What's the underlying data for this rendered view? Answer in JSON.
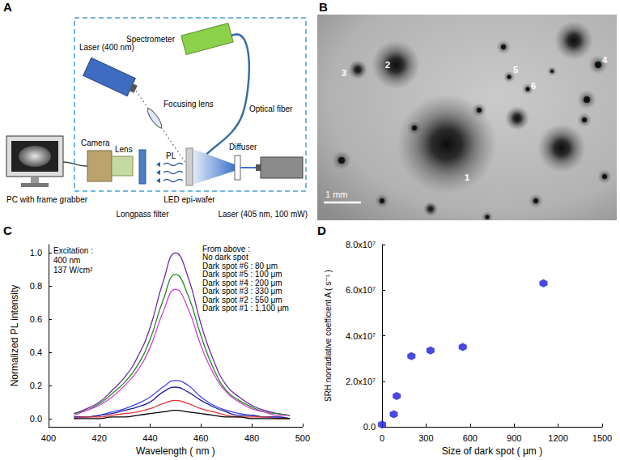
{
  "panels": {
    "A": {
      "panel_label": "A",
      "labels": {
        "spectrometer": "Spectrometer",
        "laser_probe": "Laser (400 nm)",
        "focusing_lens": "Focusing lens",
        "optical_fiber": "Optical fiber",
        "camera": "Camera",
        "lens": "Lens",
        "longpass_filter": "Longpass filter",
        "pl": "PL",
        "wafer": "LED epi-wafer",
        "diffuser": "Diffuser",
        "laser_pump": "Laser (405 nm, 100 mW)",
        "pc": "PC with frame grabber"
      }
    },
    "B": {
      "panel_label": "B",
      "spot_labels": [
        "1",
        "2",
        "3",
        "4",
        "5",
        "6"
      ],
      "scale_bar": "1 mm"
    }
  },
  "chart_data": [
    {
      "panel_label": "C",
      "type": "line",
      "x_label": "Wavelength ( nm )",
      "y_label": "Normalized PL intensity",
      "annotations": {
        "excitation": [
          "Excitation :",
          "400 nm",
          "137 W/cm²"
        ],
        "series_heading": "From above :"
      },
      "x": [
        410,
        415,
        420,
        425,
        430,
        435,
        440,
        445,
        450,
        455,
        460,
        465,
        470,
        475,
        480,
        485,
        490,
        495
      ],
      "series": [
        {
          "name": "No dark spot",
          "color": "#6f2da8",
          "values": [
            0.03,
            0.06,
            0.1,
            0.17,
            0.25,
            0.37,
            0.55,
            0.82,
            1.0,
            0.85,
            0.57,
            0.35,
            0.2,
            0.13,
            0.08,
            0.05,
            0.03,
            0.02
          ]
        },
        {
          "name": "Dark spot #6 : 80 μm",
          "color": "#228b22",
          "values": [
            0.03,
            0.05,
            0.09,
            0.15,
            0.22,
            0.32,
            0.48,
            0.71,
            0.87,
            0.74,
            0.5,
            0.3,
            0.17,
            0.11,
            0.07,
            0.04,
            0.03,
            0.02
          ]
        },
        {
          "name": "Dark spot #5 : 100 μm",
          "color": "#d040d0",
          "values": [
            0.02,
            0.05,
            0.08,
            0.13,
            0.2,
            0.29,
            0.43,
            0.64,
            0.78,
            0.66,
            0.44,
            0.27,
            0.16,
            0.1,
            0.06,
            0.04,
            0.02,
            0.02
          ]
        },
        {
          "name": "Dark spot #4 : 200 μm",
          "color": "#4040ff",
          "values": [
            0.01,
            0.01,
            0.02,
            0.04,
            0.06,
            0.09,
            0.13,
            0.19,
            0.23,
            0.2,
            0.13,
            0.08,
            0.05,
            0.03,
            0.02,
            0.01,
            0.01,
            0
          ]
        },
        {
          "name": "Dark spot #3 : 330 μm",
          "color": "#202090",
          "values": [
            0.01,
            0.01,
            0.02,
            0.03,
            0.05,
            0.07,
            0.1,
            0.16,
            0.19,
            0.16,
            0.11,
            0.07,
            0.04,
            0.02,
            0.02,
            0.01,
            0.01,
            0
          ]
        },
        {
          "name": "Dark spot #2 : 550 μm",
          "color": "#e03030",
          "values": [
            0,
            0.01,
            0.01,
            0.02,
            0.03,
            0.04,
            0.06,
            0.09,
            0.11,
            0.09,
            0.06,
            0.04,
            0.02,
            0.01,
            0.01,
            0.01,
            0,
            0
          ]
        },
        {
          "name": "Dark spot #1 : 1,100 μm",
          "color": "#000000",
          "values": [
            0,
            0,
            0,
            0.01,
            0.01,
            0.02,
            0.03,
            0.04,
            0.05,
            0.04,
            0.03,
            0.02,
            0.01,
            0.01,
            0,
            0,
            0,
            0
          ]
        }
      ],
      "xlim": [
        400,
        500
      ],
      "xticks": [
        400,
        420,
        440,
        460,
        480,
        500
      ],
      "ylim": [
        -0.05,
        1.05
      ],
      "yticks": [
        {
          "value": 0,
          "label": "0.0"
        },
        {
          "value": 0.2,
          "label": "0.2"
        },
        {
          "value": 0.4,
          "label": "0.4"
        },
        {
          "value": 0.6,
          "label": "0.6"
        },
        {
          "value": 0.8,
          "label": "0.8"
        },
        {
          "value": 1,
          "label": "1.0"
        }
      ],
      "grid": false
    },
    {
      "panel_label": "D",
      "type": "scatter",
      "x_label": "Size of dark spot ( μm )",
      "y_label": "SRH nonradiative coefficient A ( s⁻¹ )",
      "x": [
        0,
        80,
        100,
        200,
        330,
        550,
        1100
      ],
      "values": [
        1000000,
        5500000,
        13500000,
        31000000,
        33500000,
        35000000,
        63000000
      ],
      "color": "#1a1adb",
      "marker": "hexagon",
      "xlim": [
        0,
        1500
      ],
      "xticks": [
        0,
        300,
        600,
        900,
        1200,
        1500
      ],
      "ylim": [
        0,
        80000000
      ],
      "yticks": [
        {
          "value": 0,
          "label": "0.0"
        },
        {
          "value": 20000000,
          "label": "2.0x10⁷"
        },
        {
          "value": 40000000,
          "label": "4.0x10⁷"
        },
        {
          "value": 60000000,
          "label": "6.0x10⁷"
        },
        {
          "value": 80000000,
          "label": "8.0x10⁷"
        }
      ],
      "grid": false
    }
  ]
}
